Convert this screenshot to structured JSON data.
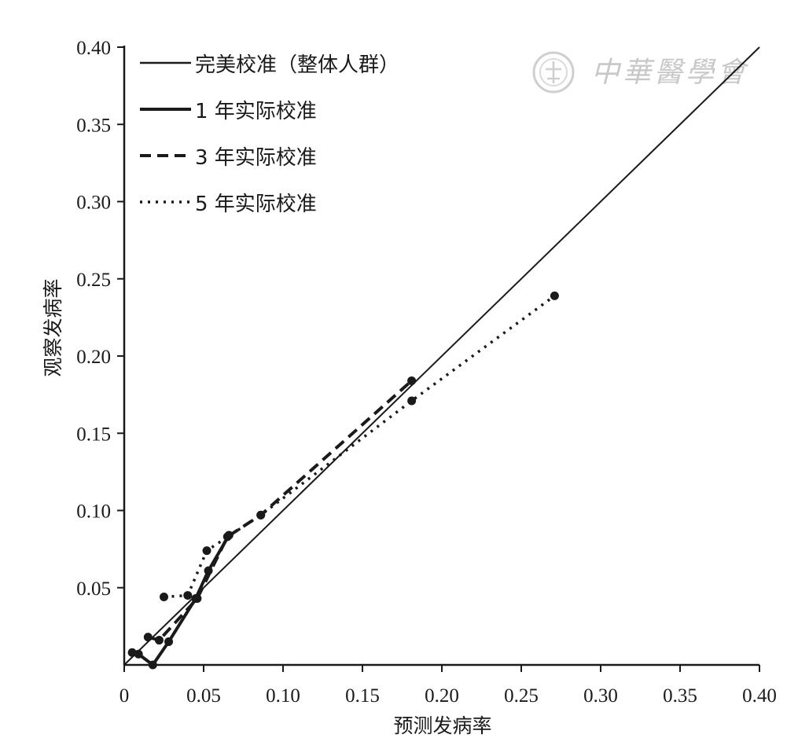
{
  "watermark": {
    "text": "中華醫學會"
  },
  "chart_data": {
    "type": "line",
    "xlabel": "预测发病率",
    "ylabel": "观察发病率",
    "xlim": [
      0,
      0.4
    ],
    "ylim": [
      0,
      0.4
    ],
    "x_ticks": [
      0,
      0.05,
      0.1,
      0.15,
      0.2,
      0.25,
      0.3,
      0.35,
      0.4
    ],
    "x_tick_labels": [
      "0",
      "0.05",
      "0.10",
      "0.15",
      "0.20",
      "0.25",
      "0.30",
      "0.35",
      "0.40"
    ],
    "y_ticks": [
      0.05,
      0.1,
      0.15,
      0.2,
      0.25,
      0.3,
      0.35,
      0.4
    ],
    "y_tick_labels": [
      "0.05",
      "0.10",
      "0.15",
      "0.20",
      "0.25",
      "0.30",
      "0.35",
      "0.40"
    ],
    "grid": false,
    "legend_position": "top-left",
    "series": [
      {
        "name": "完美校准（整体人群）",
        "style": "thin-solid",
        "markers": false,
        "x": [
          0,
          0.4
        ],
        "y": [
          0,
          0.4
        ]
      },
      {
        "name": "1 年实际校准",
        "style": "thick-solid",
        "markers": true,
        "x": [
          0.005,
          0.009,
          0.018,
          0.028,
          0.045,
          0.053,
          0.066
        ],
        "y": [
          0.008,
          0.007,
          0.0,
          0.015,
          0.043,
          0.061,
          0.084
        ]
      },
      {
        "name": "3 年实际校准",
        "style": "dashed",
        "markers": true,
        "x": [
          0.015,
          0.022,
          0.046,
          0.065,
          0.086,
          0.181
        ],
        "y": [
          0.018,
          0.016,
          0.043,
          0.083,
          0.097,
          0.184
        ]
      },
      {
        "name": "5 年实际校准",
        "style": "dotted",
        "markers": true,
        "x": [
          0.025,
          0.04,
          0.052,
          0.086,
          0.181,
          0.271
        ],
        "y": [
          0.044,
          0.045,
          0.074,
          0.097,
          0.171,
          0.239
        ]
      }
    ]
  }
}
